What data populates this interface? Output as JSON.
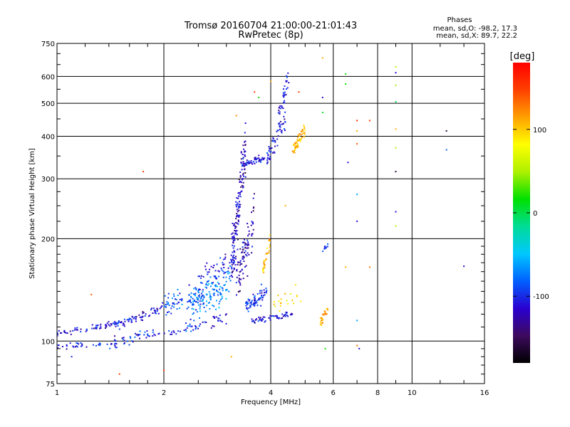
{
  "chart_data": {
    "type": "scatter",
    "title": "Tromsø 20160704 21:00:00-21:01:43",
    "subtitle": "RwPretec (8p)",
    "xlabel": "Frequency [MHz]",
    "ylabel": "Stationary phase Virtual Height [km]",
    "x_scale": "log",
    "y_scale": "log",
    "xlim": [
      1,
      16
    ],
    "ylim": [
      75,
      750
    ],
    "x_ticks": [
      1,
      2,
      4,
      6,
      8,
      10,
      16
    ],
    "x_tick_labels": [
      "1",
      "2",
      "4",
      "6",
      "8",
      "10",
      "16"
    ],
    "y_ticks": [
      75,
      100,
      200,
      300,
      400,
      500,
      600,
      750
    ],
    "y_tick_labels": [
      "75",
      "100",
      "200",
      "300",
      "400",
      "500",
      "600",
      "750"
    ],
    "grid": true,
    "color_label": "[deg]",
    "color_range": [
      -180,
      180
    ],
    "color_ticks": [
      100,
      0,
      -100
    ],
    "color_tick_labels": [
      "100",
      "0",
      "-100"
    ],
    "colormap": [
      "#000000",
      "#3d0a5e",
      "#2a00d0",
      "#0060ff",
      "#00c8ff",
      "#00dc96",
      "#00e000",
      "#aef000",
      "#ffff00",
      "#ffa000",
      "#ff4000",
      "#ff0000"
    ],
    "annotation": {
      "heading": "Phases",
      "line1": "mean, sd,O:  -98.2, 17.3",
      "line2": "mean, sd,X:  89.7, 22.2"
    },
    "clusters": [
      {
        "x": [
          1.0,
          1.5
        ],
        "y": [
          105,
          113
        ],
        "phase": -110,
        "n": 70,
        "sy": 0.02
      },
      {
        "x": [
          1.5,
          2.0
        ],
        "y": [
          112,
          126
        ],
        "phase": -110,
        "n": 60,
        "sy": 0.03
      },
      {
        "x": [
          1.0,
          1.4
        ],
        "y": [
          96,
          99
        ],
        "phase": -105,
        "n": 30,
        "sy": 0.02
      },
      {
        "x": [
          1.4,
          1.9
        ],
        "y": [
          97,
          108
        ],
        "phase": -105,
        "n": 45,
        "sy": 0.04
      },
      {
        "x": [
          1.8,
          2.4
        ],
        "y": [
          104,
          108
        ],
        "phase": -100,
        "n": 20,
        "sy": 0.02
      },
      {
        "x": [
          2.0,
          2.6
        ],
        "y": [
          125,
          135
        ],
        "phase": -90,
        "n": 90,
        "sy": 0.08
      },
      {
        "x": [
          2.4,
          3.1
        ],
        "y": [
          130,
          150
        ],
        "phase": -70,
        "n": 110,
        "sy": 0.12
      },
      {
        "x": [
          2.3,
          3.0
        ],
        "y": [
          110,
          118
        ],
        "phase": -105,
        "n": 40,
        "sy": 0.04
      },
      {
        "x": [
          2.5,
          3.2
        ],
        "y": [
          150,
          175
        ],
        "phase": -105,
        "n": 60,
        "sy": 0.1
      },
      {
        "x": [
          3.1,
          3.4
        ],
        "y": [
          170,
          380
        ],
        "phase": -118,
        "n": 150,
        "sy": 0.2
      },
      {
        "x": [
          3.2,
          3.6
        ],
        "y": [
          150,
          230
        ],
        "phase": -120,
        "n": 90,
        "sy": 0.15
      },
      {
        "x": [
          3.4,
          3.9
        ],
        "y": [
          125,
          140
        ],
        "phase": -100,
        "n": 70,
        "sy": 0.05
      },
      {
        "x": [
          3.5,
          4.6
        ],
        "y": [
          114,
          120
        ],
        "phase": -110,
        "n": 60,
        "sy": 0.02
      },
      {
        "x": [
          3.4,
          3.85
        ],
        "y": [
          334,
          345
        ],
        "phase": -108,
        "n": 45,
        "sy": 0.02
      },
      {
        "x": [
          3.9,
          4.4
        ],
        "y": [
          340,
          450
        ],
        "phase": -108,
        "n": 60,
        "sy": 0.08
      },
      {
        "x": [
          4.2,
          4.5
        ],
        "y": [
          450,
          620
        ],
        "phase": -110,
        "n": 35,
        "sy": 0.08
      },
      {
        "x": [
          3.8,
          4.0
        ],
        "y": [
          160,
          200
        ],
        "phase": 105,
        "n": 30,
        "sy": 0.06
      },
      {
        "x": [
          4.6,
          5.0
        ],
        "y": [
          360,
          420
        ],
        "phase": 110,
        "n": 60,
        "sy": 0.05
      },
      {
        "x": [
          5.5,
          5.8
        ],
        "y": [
          114,
          125
        ],
        "phase": 108,
        "n": 25,
        "sy": 0.03
      },
      {
        "x": [
          5.6,
          5.8
        ],
        "y": [
          186,
          190
        ],
        "phase": -90,
        "n": 10,
        "sy": 0.02
      },
      {
        "x": [
          4.0,
          5.0
        ],
        "y": [
          125,
          140
        ],
        "phase": 90,
        "n": 20,
        "sy": 0.06
      }
    ],
    "points": [
      {
        "x": 1.1,
        "y": 90,
        "phase": -100
      },
      {
        "x": 1.25,
        "y": 137,
        "phase": 140
      },
      {
        "x": 1.5,
        "y": 80,
        "phase": 150
      },
      {
        "x": 1.75,
        "y": 315,
        "phase": 150
      },
      {
        "x": 2.0,
        "y": 82,
        "phase": 150
      },
      {
        "x": 3.1,
        "y": 90,
        "phase": 110
      },
      {
        "x": 3.2,
        "y": 460,
        "phase": 120
      },
      {
        "x": 3.6,
        "y": 540,
        "phase": 150
      },
      {
        "x": 3.7,
        "y": 520,
        "phase": 20
      },
      {
        "x": 4.0,
        "y": 580,
        "phase": 110
      },
      {
        "x": 4.4,
        "y": 250,
        "phase": 110
      },
      {
        "x": 4.8,
        "y": 540,
        "phase": 150
      },
      {
        "x": 5.6,
        "y": 680,
        "phase": 110
      },
      {
        "x": 5.6,
        "y": 520,
        "phase": -110
      },
      {
        "x": 5.6,
        "y": 470,
        "phase": 10
      },
      {
        "x": 5.7,
        "y": 95,
        "phase": 20
      },
      {
        "x": 6.5,
        "y": 610,
        "phase": 20
      },
      {
        "x": 6.5,
        "y": 570,
        "phase": 20
      },
      {
        "x": 6.6,
        "y": 335,
        "phase": -110
      },
      {
        "x": 6.5,
        "y": 165,
        "phase": 110
      },
      {
        "x": 7.0,
        "y": 445,
        "phase": 160
      },
      {
        "x": 7.0,
        "y": 415,
        "phase": 110
      },
      {
        "x": 7.0,
        "y": 380,
        "phase": 140
      },
      {
        "x": 7.0,
        "y": 270,
        "phase": -60
      },
      {
        "x": 7.0,
        "y": 225,
        "phase": -110
      },
      {
        "x": 7.0,
        "y": 115,
        "phase": -60
      },
      {
        "x": 7.0,
        "y": 97,
        "phase": 130
      },
      {
        "x": 7.1,
        "y": 95,
        "phase": -110
      },
      {
        "x": 7.6,
        "y": 445,
        "phase": 150
      },
      {
        "x": 7.6,
        "y": 165,
        "phase": 130
      },
      {
        "x": 9.0,
        "y": 640,
        "phase": 50
      },
      {
        "x": 9.0,
        "y": 615,
        "phase": -110
      },
      {
        "x": 9.0,
        "y": 565,
        "phase": 50
      },
      {
        "x": 9.0,
        "y": 505,
        "phase": 0
      },
      {
        "x": 9.0,
        "y": 420,
        "phase": 110
      },
      {
        "x": 9.0,
        "y": 370,
        "phase": 50
      },
      {
        "x": 9.0,
        "y": 315,
        "phase": -160
      },
      {
        "x": 9.0,
        "y": 240,
        "phase": -110
      },
      {
        "x": 9.0,
        "y": 218,
        "phase": 50
      },
      {
        "x": 12.5,
        "y": 415,
        "phase": -160
      },
      {
        "x": 12.5,
        "y": 365,
        "phase": -80
      },
      {
        "x": 14.0,
        "y": 166,
        "phase": -110
      }
    ]
  }
}
